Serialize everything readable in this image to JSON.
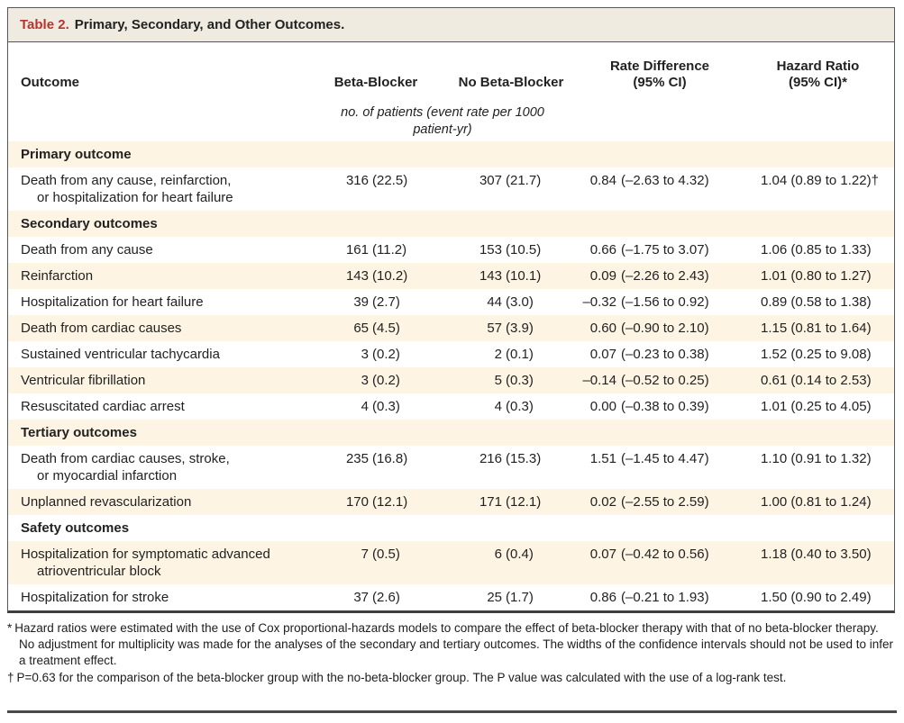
{
  "colors": {
    "accent_red": "#b9332e",
    "row_cream": "#fdf4e3",
    "title_beige": "#f0ebe0"
  },
  "table": {
    "title_label": "Table 2.",
    "title_text": "Primary, Secondary, and Other Outcomes.",
    "columns": {
      "outcome": "Outcome",
      "beta": "Beta-Blocker",
      "no_beta": "No Beta-Blocker",
      "rate_diff_line1": "Rate Difference",
      "rate_diff_line2": "(95% CI)",
      "hazard_line1": "Hazard Ratio",
      "hazard_line2": "(95% CI)*"
    },
    "units_note": "no. of patients (event rate per 1000 patient-yr)",
    "sections": [
      {
        "header": "Primary outcome",
        "rows": [
          {
            "o1": "Death from any cause, reinfarction,",
            "o2": "or hospitalization for heart failure",
            "bn": "316",
            "bp": "(22.5)",
            "nn": "307",
            "np": "(21.7)",
            "rn": "0.84",
            "rp": "(–2.63 to 4.32)",
            "hr": "1.04 (0.89 to 1.22)†"
          }
        ]
      },
      {
        "header": "Secondary outcomes",
        "rows": [
          {
            "o1": "Death from any cause",
            "bn": "161",
            "bp": "(11.2)",
            "nn": "153",
            "np": "(10.5)",
            "rn": "0.66",
            "rp": "(–1.75 to 3.07)",
            "hr": "1.06 (0.85 to 1.33)"
          },
          {
            "o1": "Reinfarction",
            "bn": "143",
            "bp": "(10.2)",
            "nn": "143",
            "np": "(10.1)",
            "rn": "0.09",
            "rp": "(–2.26 to 2.43)",
            "hr": "1.01 (0.80 to 1.27)"
          },
          {
            "o1": "Hospitalization for heart failure",
            "bn": "39",
            "bp": "(2.7)",
            "nn": "44",
            "np": "(3.0)",
            "rn": "–0.32",
            "rp": "(–1.56 to 0.92)",
            "hr": "0.89 (0.58 to 1.38)"
          },
          {
            "o1": "Death from cardiac causes",
            "bn": "65",
            "bp": "(4.5)",
            "nn": "57",
            "np": "(3.9)",
            "rn": "0.60",
            "rp": "(–0.90 to 2.10)",
            "hr": "1.15 (0.81 to 1.64)"
          },
          {
            "o1": "Sustained ventricular tachycardia",
            "bn": "3",
            "bp": "(0.2)",
            "nn": "2",
            "np": "(0.1)",
            "rn": "0.07",
            "rp": "(–0.23 to 0.38)",
            "hr": "1.52 (0.25 to 9.08)"
          },
          {
            "o1": "Ventricular fibrillation",
            "bn": "3",
            "bp": "(0.2)",
            "nn": "5",
            "np": "(0.3)",
            "rn": "–0.14",
            "rp": "(–0.52 to 0.25)",
            "hr": "0.61 (0.14 to 2.53)"
          },
          {
            "o1": "Resuscitated cardiac arrest",
            "bn": "4",
            "bp": "(0.3)",
            "nn": "4",
            "np": "(0.3)",
            "rn": "0.00",
            "rp": "(–0.38 to 0.39)",
            "hr": "1.01 (0.25 to 4.05)"
          }
        ]
      },
      {
        "header": "Tertiary outcomes",
        "rows": [
          {
            "o1": "Death from cardiac causes, stroke,",
            "o2": "or myocardial infarction",
            "bn": "235",
            "bp": "(16.8)",
            "nn": "216",
            "np": "(15.3)",
            "rn": "1.51",
            "rp": "(–1.45 to 4.47)",
            "hr": "1.10 (0.91 to 1.32)"
          },
          {
            "o1": "Unplanned revascularization",
            "bn": "170",
            "bp": "(12.1)",
            "nn": "171",
            "np": "(12.1)",
            "rn": "0.02",
            "rp": "(–2.55 to 2.59)",
            "hr": "1.00 (0.81 to 1.24)"
          }
        ]
      },
      {
        "header": "Safety outcomes",
        "rows": [
          {
            "o1": "Hospitalization for symptomatic advanced",
            "o2": "atrioventricular block",
            "bn": "7",
            "bp": "(0.5)",
            "nn": "6",
            "np": "(0.4)",
            "rn": "0.07",
            "rp": "(–0.42 to 0.56)",
            "hr": "1.18 (0.40 to 3.50)"
          },
          {
            "o1": "Hospitalization for stroke",
            "bn": "37",
            "bp": "(2.6)",
            "nn": "25",
            "np": "(1.7)",
            "rn": "0.86",
            "rp": "(–0.21 to 1.93)",
            "hr": "1.50 (0.90 to 2.49)"
          }
        ]
      }
    ],
    "footnotes": [
      {
        "marker": "*",
        "text": "Hazard ratios were estimated with the use of Cox proportional-hazards models to compare the effect of beta-blocker therapy with that of no beta-blocker therapy. No adjustment for multiplicity was made for the analyses of the secondary and tertiary outcomes. The widths of the confidence intervals should not be used to infer a treatment effect."
      },
      {
        "marker": "†",
        "text": "P=0.63 for the comparison of the beta-blocker group with the no-beta-blocker group. The P value was calculated with the use of a log-rank test."
      }
    ]
  }
}
